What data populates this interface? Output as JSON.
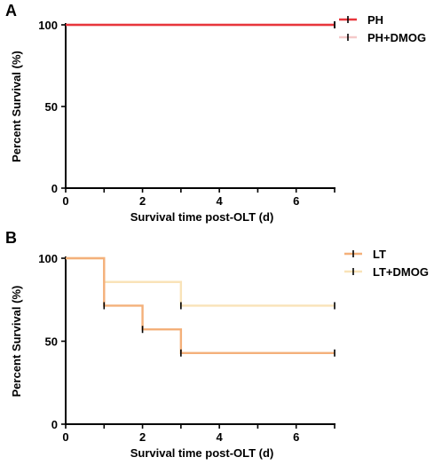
{
  "chart_data": [
    {
      "type": "line",
      "panel_label": "A",
      "xlabel": "Survival time post-OLT (d)",
      "ylabel": "Percent Survival (%)",
      "xlim": [
        0,
        7
      ],
      "ylim": [
        0,
        100
      ],
      "xticks": [
        0,
        2,
        4,
        6
      ],
      "yticks": [
        0,
        50,
        100
      ],
      "grid": false,
      "legend_position": "top-right",
      "series": [
        {
          "name": "PH",
          "color": "#e8363c",
          "x": [
            0,
            7
          ],
          "y": [
            100,
            100
          ],
          "censored": [
            [
              7,
              100
            ]
          ]
        },
        {
          "name": "PH+DMOG",
          "color": "#f5c9c9",
          "x": [
            0,
            7
          ],
          "y": [
            100,
            100
          ],
          "censored": [
            [
              7,
              100
            ]
          ]
        }
      ]
    },
    {
      "type": "line",
      "panel_label": "B",
      "xlabel": "Survival time post-OLT (d)",
      "ylabel": "Percent Survival (%)",
      "xlim": [
        0,
        7
      ],
      "ylim": [
        0,
        100
      ],
      "xticks": [
        0,
        2,
        4,
        6
      ],
      "yticks": [
        0,
        50,
        100
      ],
      "grid": false,
      "legend_position": "top-right",
      "series": [
        {
          "name": "LT",
          "color": "#f4b07a",
          "x": [
            0,
            1,
            1,
            2,
            2,
            3,
            3,
            7
          ],
          "y": [
            100,
            100,
            71.4,
            71.4,
            57.1,
            57.1,
            42.9,
            42.9
          ],
          "censored": [
            [
              1,
              71.4
            ],
            [
              2,
              57.1
            ],
            [
              3,
              42.9
            ],
            [
              7,
              42.9
            ]
          ]
        },
        {
          "name": "LT+DMOG",
          "color": "#f9e3b8",
          "x": [
            0,
            1,
            1,
            3,
            3,
            7
          ],
          "y": [
            100,
            100,
            85.7,
            85.7,
            71.4,
            71.4
          ],
          "censored": [
            [
              3,
              71.4
            ],
            [
              7,
              71.4
            ]
          ]
        }
      ]
    }
  ]
}
